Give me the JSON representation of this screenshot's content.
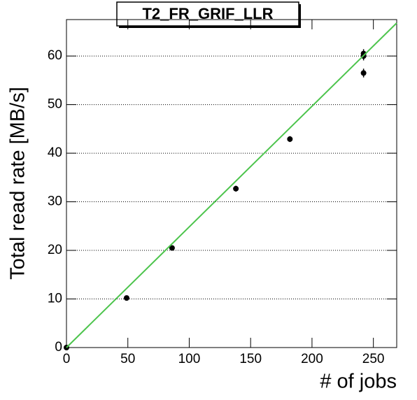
{
  "chart_data": {
    "type": "scatter",
    "title": "T2_FR_GRIF_LLR",
    "x_label": "# of jobs",
    "y_label": "Total read rate [MB/s]",
    "xlim": [
      0,
      269
    ],
    "ylim": [
      0,
      67.5
    ],
    "xticks": [
      0,
      50,
      100,
      150,
      200,
      250
    ],
    "yticks": [
      0,
      10,
      20,
      30,
      40,
      50,
      60
    ],
    "grid": true,
    "series": [
      {
        "type": "scatter",
        "color": "#000000",
        "x": [
          0,
          49,
          86,
          138,
          182,
          242,
          242,
          242
        ],
        "values": [
          0,
          10.2,
          20.5,
          32.7,
          42.9,
          56.5,
          60,
          60.5
        ],
        "errors": [
          0.3,
          0.5,
          0.5,
          0.6,
          0.6,
          0.9,
          0.9,
          0.9
        ]
      },
      {
        "type": "line",
        "color": "#4cc44c",
        "x": [
          0,
          269
        ],
        "values": [
          0,
          66.8
        ]
      }
    ]
  }
}
